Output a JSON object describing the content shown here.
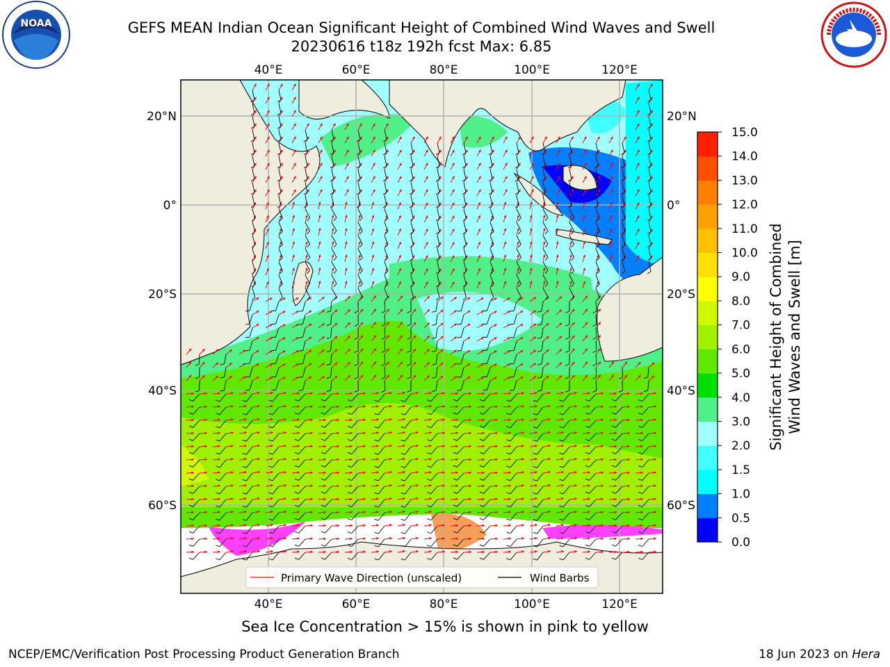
{
  "header": {
    "title_line1": "GEFS MEAN Indian Ocean Significant Height of Combined Wind Waves and Swell",
    "title_line2": "20230616 t18z 192h fcst   Max: 6.85"
  },
  "logos": {
    "left": "noaa-logo",
    "left_text": "NOAA",
    "right": "nws-logo",
    "right_text": "NATIONAL WEATHER SERVICE"
  },
  "map": {
    "lon_labels": [
      "40°E",
      "60°E",
      "80°E",
      "100°E",
      "120°E"
    ],
    "lat_labels": [
      "20°N",
      "0°",
      "20°S",
      "40°S",
      "60°S"
    ],
    "legend": {
      "wave_label": "Primary Wave Direction (unscaled)",
      "wind_label": "Wind Barbs",
      "wave_color": "#ff0000",
      "wind_color": "#000000"
    },
    "colors": {
      "land": "#efedde",
      "ice": "#ffffff",
      "ice_pink": "#ff40ff",
      "ice_orange": "#f5a05a"
    }
  },
  "colorbar": {
    "title_line1": "Significant Height of Combined",
    "title_line2": "Wind Waves and Swell [m]",
    "ticks": [
      "0.0",
      "0.5",
      "1.0",
      "1.5",
      "2.0",
      "3.0",
      "4.0",
      "5.0",
      "6.0",
      "7.0",
      "8.0",
      "9.0",
      "10.0",
      "11.0",
      "12.0",
      "13.0",
      "14.0",
      "15.0"
    ],
    "colors": [
      "#0000ff",
      "#0080ff",
      "#00ffff",
      "#40ffff",
      "#a0ffff",
      "#50f088",
      "#00e000",
      "#60e800",
      "#a0f000",
      "#d0f800",
      "#ffff00",
      "#ffe000",
      "#ffc000",
      "#ffa000",
      "#ff8000",
      "#ff5000",
      "#ff2000"
    ]
  },
  "footer": {
    "note": "Sea Ice Concentration > 15% is shown in pink to yellow",
    "left": "NCEP/EMC/Verification Post Processing Product Generation Branch",
    "right_date": "18 Jun 2023 on ",
    "right_host": "Hera"
  }
}
